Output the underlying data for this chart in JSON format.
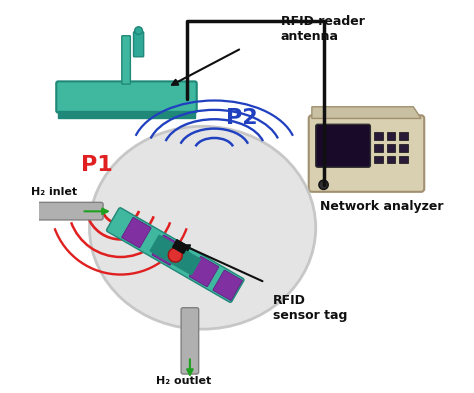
{
  "title": "",
  "background_color": "#ffffff",
  "labels": {
    "rfid_antenna": "RFID reader\nantenna",
    "network_analyzer": "Network analyzer",
    "rfid_sensor_tag": "RFID\nsensor tag",
    "h2_inlet": "H₂ inlet",
    "h2_outlet": "H₂ outlet",
    "p1": "P1",
    "p2": "P2"
  },
  "colors": {
    "antenna_body": "#40b8a0",
    "antenna_post": "#40b8a0",
    "wave_red": "#e02020",
    "wave_blue": "#2040c0",
    "network_box": "#d8d0b0",
    "network_screen": "#1a0a2a",
    "network_button": "#2a1a3a",
    "sensor_board": "#40b8a0",
    "sensor_purple": "#8030a0",
    "sensor_dot": "#e03030",
    "sphere_fill": "#e0e0e0",
    "sphere_edge": "#c0c0c0",
    "tube_color": "#b0b0b0",
    "wire_color": "#101010",
    "arrow_color": "#101010",
    "h2_arrow_color": "#20a020",
    "p1_color": "#e02020",
    "p2_color": "#2040c0",
    "label_color": "#101010"
  },
  "figsize": [
    4.74,
    3.93
  ],
  "dpi": 100
}
